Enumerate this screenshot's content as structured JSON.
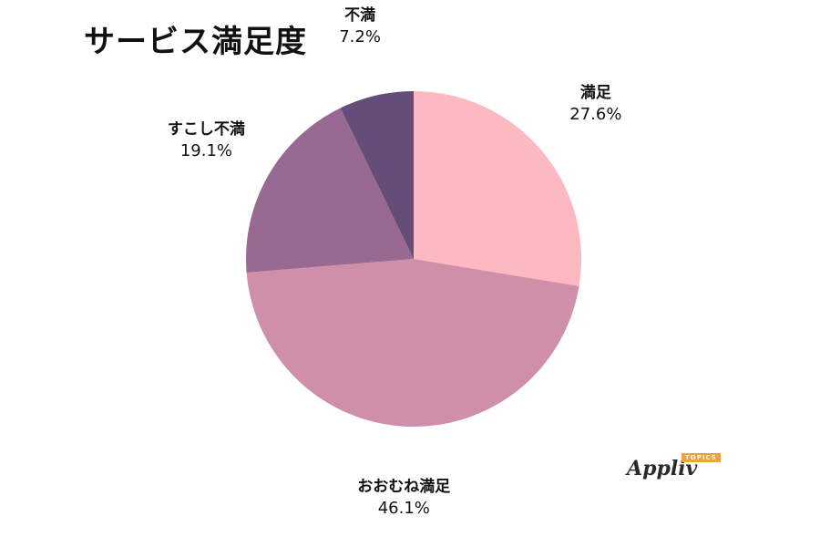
{
  "chart_data": {
    "type": "pie",
    "title": "サービス満足度",
    "start_angle_deg": 0,
    "direction": "clockwise",
    "legend": "none",
    "slices": [
      {
        "label": "満足",
        "value": 27.6,
        "value_text": "27.6%",
        "color": "#fdb9c1"
      },
      {
        "label": "おおむね満足",
        "value": 46.1,
        "value_text": "46.1%",
        "color": "#cf8fa9"
      },
      {
        "label": "すこし不満",
        "value": 19.1,
        "value_text": "19.1%",
        "color": "#986a92"
      },
      {
        "label": "不満",
        "value": 7.2,
        "value_text": "7.2%",
        "color": "#654d7a"
      }
    ]
  },
  "logo": {
    "word": "Appliv",
    "tag": "TOPICS"
  }
}
